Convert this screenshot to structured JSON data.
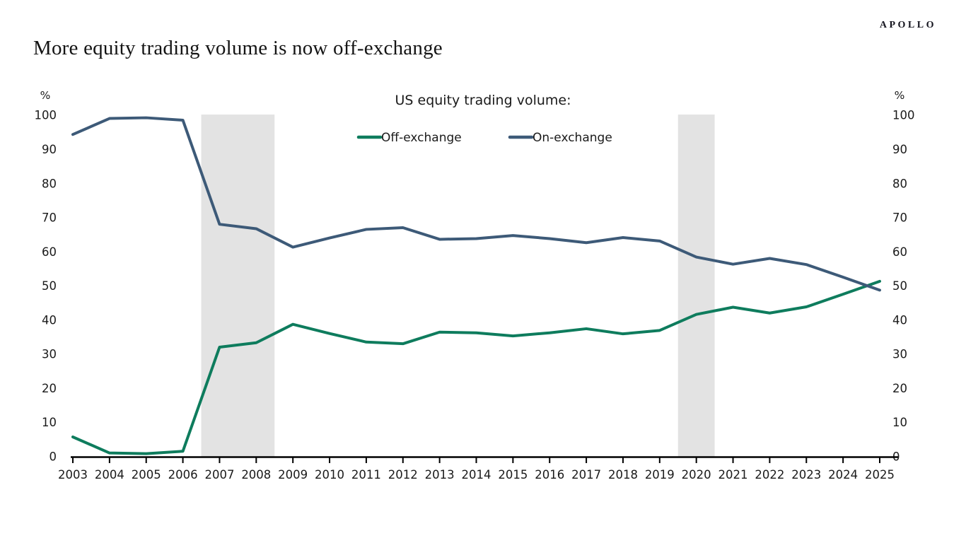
{
  "brand": "APOLLO",
  "page_title": "More equity trading volume is now off-exchange",
  "chart_data": {
    "type": "line",
    "title": "US equity trading volume:",
    "ylabel_left": "%",
    "ylabel_right": "%",
    "ylim": [
      0,
      100
    ],
    "ytick_step": 10,
    "grid": false,
    "legend_position": "top-center",
    "x": [
      2003,
      2004,
      2005,
      2006,
      2007,
      2008,
      2009,
      2010,
      2011,
      2012,
      2013,
      2014,
      2015,
      2016,
      2017,
      2018,
      2019,
      2020,
      2021,
      2022,
      2023,
      2024,
      2025
    ],
    "series": [
      {
        "name": "Off-exchange",
        "color": "#0e7c5d",
        "values": [
          5.7,
          1.0,
          0.8,
          1.5,
          32.0,
          33.3,
          38.7,
          36.0,
          33.5,
          33.0,
          36.4,
          36.2,
          35.3,
          36.2,
          37.4,
          35.9,
          36.9,
          41.6,
          43.7,
          42.0,
          43.8,
          47.5,
          51.3
        ]
      },
      {
        "name": "On-exchange",
        "color": "#3d5a78",
        "values": [
          94.3,
          99.0,
          99.2,
          98.5,
          68.0,
          66.7,
          61.3,
          64.0,
          66.5,
          67.0,
          63.6,
          63.8,
          64.7,
          63.8,
          62.6,
          64.1,
          63.1,
          58.4,
          56.3,
          58.0,
          56.2,
          52.5,
          48.7
        ]
      }
    ],
    "shaded_regions": [
      {
        "from": 2006.5,
        "to": 2008.5
      },
      {
        "from": 2019.5,
        "to": 2020.5
      }
    ],
    "shade_color": "#e3e3e3"
  }
}
